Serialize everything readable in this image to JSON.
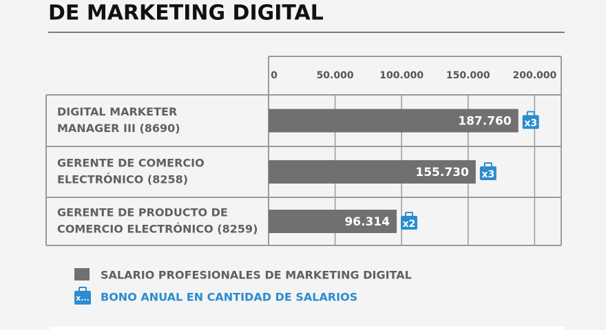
{
  "chart_data": {
    "type": "bar",
    "orientation": "horizontal",
    "title": "DE MARKETING DIGITAL",
    "categories": [
      [
        "DIGITAL MARKETER",
        "MANAGER III (8690)"
      ],
      [
        "GERENTE DE COMERCIO",
        "ELECTRÓNICO (8258)"
      ],
      [
        "GERENTE DE PRODUCTO DE",
        "COMERCIO ELECTRÓNICO (8259)"
      ]
    ],
    "series": [
      {
        "name": "SALARIO PROFESIONALES DE MARKETING DIGITAL",
        "color": "#707070",
        "values": [
          187760,
          155730,
          96314
        ],
        "value_labels": [
          "187.760",
          "155.730",
          "96.314"
        ]
      },
      {
        "name": "BONO ANUAL EN CANTIDAD DE SALARIOS",
        "color": "#2b8ccf",
        "values": [
          3,
          3,
          2
        ],
        "value_labels": [
          "x3",
          "x3",
          "x2"
        ],
        "legend_icon_label": "x..."
      }
    ],
    "xlim": [
      0,
      220000
    ],
    "xticks": [
      0,
      {
        "value": 50000,
        "label": "50.000"
      },
      {
        "value": 100000,
        "label": "100.000"
      },
      {
        "value": 150000,
        "label": "150.000"
      },
      {
        "value": 200000,
        "label": "200.000"
      }
    ],
    "grid": true
  }
}
